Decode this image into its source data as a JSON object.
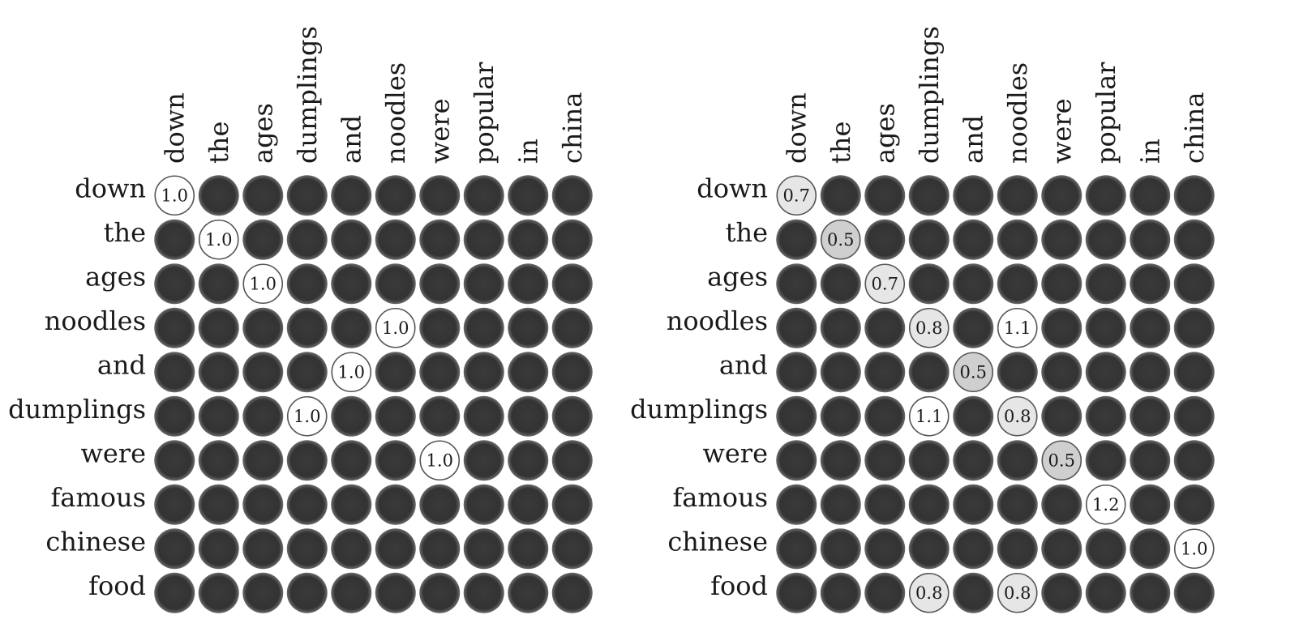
{
  "chart_data": [
    {
      "type": "heatmap",
      "title": "",
      "xlabel": "",
      "ylabel": "",
      "columns": [
        "down",
        "the",
        "ages",
        "dumplings",
        "and",
        "noodles",
        "were",
        "popular",
        "in",
        "china"
      ],
      "rows": [
        "down",
        "the",
        "ages",
        "noodles",
        "and",
        "dumplings",
        "were",
        "famous",
        "chinese",
        "food"
      ],
      "cells": [
        {
          "row": 0,
          "col": 0,
          "value": "1.0"
        },
        {
          "row": 1,
          "col": 1,
          "value": "1.0"
        },
        {
          "row": 2,
          "col": 2,
          "value": "1.0"
        },
        {
          "row": 3,
          "col": 5,
          "value": "1.0"
        },
        {
          "row": 4,
          "col": 4,
          "value": "1.0"
        },
        {
          "row": 5,
          "col": 3,
          "value": "1.0"
        },
        {
          "row": 6,
          "col": 6,
          "value": "1.0"
        }
      ],
      "empty_cell_color": "#333333"
    },
    {
      "type": "heatmap",
      "title": "",
      "xlabel": "",
      "ylabel": "",
      "columns": [
        "down",
        "the",
        "ages",
        "dumplings",
        "and",
        "noodles",
        "were",
        "popular",
        "in",
        "china"
      ],
      "rows": [
        "down",
        "the",
        "ages",
        "noodles",
        "and",
        "dumplings",
        "were",
        "famous",
        "chinese",
        "food"
      ],
      "cells": [
        {
          "row": 0,
          "col": 0,
          "value": "0.7"
        },
        {
          "row": 1,
          "col": 1,
          "value": "0.5"
        },
        {
          "row": 2,
          "col": 2,
          "value": "0.7"
        },
        {
          "row": 3,
          "col": 3,
          "value": "0.8"
        },
        {
          "row": 3,
          "col": 5,
          "value": "1.1"
        },
        {
          "row": 4,
          "col": 4,
          "value": "0.5"
        },
        {
          "row": 5,
          "col": 3,
          "value": "1.1"
        },
        {
          "row": 5,
          "col": 5,
          "value": "0.8"
        },
        {
          "row": 6,
          "col": 6,
          "value": "0.5"
        },
        {
          "row": 7,
          "col": 7,
          "value": "1.2"
        },
        {
          "row": 8,
          "col": 9,
          "value": "1.0"
        },
        {
          "row": 9,
          "col": 3,
          "value": "0.8"
        },
        {
          "row": 9,
          "col": 5,
          "value": "0.8"
        }
      ],
      "empty_cell_color": "#333333"
    }
  ]
}
